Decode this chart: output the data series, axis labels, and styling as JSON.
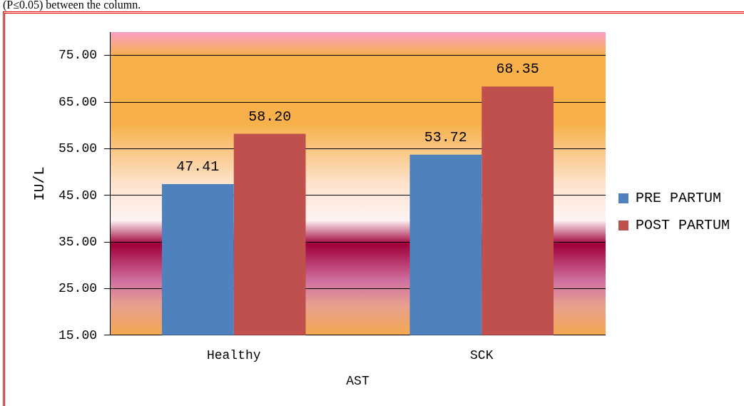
{
  "chart_data": {
    "type": "bar",
    "categories": [
      "Healthy",
      "SCK"
    ],
    "series": [
      {
        "name": "PRE PARTUM",
        "color": "#4f81bd",
        "values": [
          47.41,
          53.72
        ],
        "value_labels": [
          "47.41",
          "53.72"
        ]
      },
      {
        "name": "POST PARTUM",
        "color": "#c0504d",
        "values": [
          58.2,
          68.35
        ],
        "value_labels": [
          "58.20",
          "68.35"
        ]
      }
    ],
    "xlabel": "AST",
    "ylabel": "IU/L",
    "ylim": [
      15,
      80
    ],
    "yticks": [
      {
        "value": 15,
        "label": "15.00"
      },
      {
        "value": 25,
        "label": "25.00"
      },
      {
        "value": 35,
        "label": "35.00"
      },
      {
        "value": 45,
        "label": "45.00"
      },
      {
        "value": 55,
        "label": "55.00"
      },
      {
        "value": 65,
        "label": "65.00"
      },
      {
        "value": 75,
        "label": "75.00"
      }
    ],
    "grid": "y",
    "legend": "right",
    "annotations": [
      "(P≤0.05) between the column."
    ]
  }
}
